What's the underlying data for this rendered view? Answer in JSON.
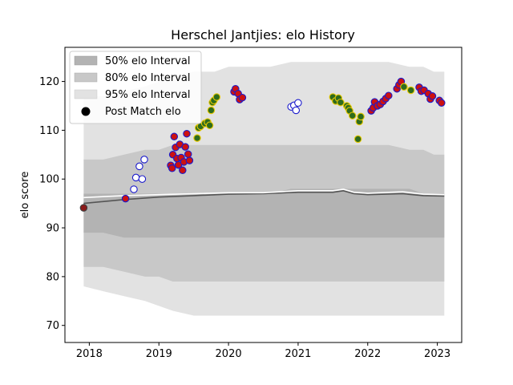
{
  "chart_data": {
    "type": "scatter",
    "title": "Herschel Jantjies: elo History",
    "xlabel": "",
    "ylabel": "elo score",
    "xlim": [
      2017.65,
      2023.35
    ],
    "ylim": [
      66.5,
      127
    ],
    "x_ticks": [
      2018,
      2019,
      2020,
      2021,
      2022,
      2023
    ],
    "x_tick_labels": [
      "2018",
      "2019",
      "2020",
      "2021",
      "2022",
      "2023"
    ],
    "y_ticks": [
      70,
      80,
      90,
      100,
      110,
      120
    ],
    "y_tick_labels": [
      "70",
      "80",
      "90",
      "100",
      "110",
      "120"
    ],
    "legend": {
      "position": "top-left",
      "entries": [
        {
          "label": "50% elo Interval",
          "color": "#b3b3b3"
        },
        {
          "label": "80% elo Interval",
          "color": "#c8c8c8"
        },
        {
          "label": "95% elo Interval",
          "color": "#e2e2e2"
        },
        {
          "label": "Post Match elo",
          "color": "#000000"
        }
      ]
    },
    "bands": {
      "x": [
        2017.92,
        2018.2,
        2018.5,
        2018.8,
        2019.0,
        2019.2,
        2019.5,
        2019.8,
        2020.0,
        2020.3,
        2020.6,
        2020.9,
        2021.2,
        2021.5,
        2021.8,
        2022.0,
        2022.3,
        2022.6,
        2022.8,
        2022.95,
        2023.1
      ],
      "p95_upper": [
        117,
        117,
        118,
        119,
        120,
        121,
        122,
        122,
        123,
        123,
        123,
        124,
        124,
        124,
        124,
        124,
        124,
        123,
        123,
        122,
        122
      ],
      "p80_upper": [
        104,
        104,
        105,
        106,
        106,
        107,
        107,
        107,
        107,
        107,
        107,
        107,
        107,
        107,
        107,
        107,
        107,
        106,
        106,
        105,
        105
      ],
      "p50_upper": [
        97,
        97,
        97,
        97,
        97,
        97,
        97,
        97,
        97,
        97,
        97,
        98,
        98,
        98,
        98,
        98,
        98,
        98,
        97,
        97,
        97
      ],
      "p50_lower": [
        89,
        89,
        88,
        88,
        88,
        88,
        88,
        88,
        88,
        88,
        88,
        88,
        88,
        88,
        88,
        88,
        88,
        88,
        88,
        88,
        88
      ],
      "p80_lower": [
        82,
        82,
        81,
        80,
        80,
        79,
        79,
        79,
        79,
        79,
        79,
        79,
        79,
        79,
        79,
        79,
        79,
        79,
        79,
        79,
        79
      ],
      "p95_lower": [
        78,
        77,
        76,
        75,
        74,
        73,
        72,
        72,
        72,
        72,
        72,
        72,
        72,
        72,
        72,
        72,
        72,
        72,
        72,
        72,
        72
      ]
    },
    "median_line": {
      "x": [
        2017.92,
        2018.5,
        2019.0,
        2019.5,
        2020.0,
        2020.5,
        2021.0,
        2021.5,
        2021.65,
        2021.8,
        2022.0,
        2022.5,
        2022.8,
        2023.1
      ],
      "y": [
        95.0,
        95.8,
        96.3,
        96.6,
        96.9,
        97.0,
        97.3,
        97.3,
        97.6,
        97.0,
        96.8,
        97.0,
        96.6,
        96.5
      ],
      "color": "#555555"
    },
    "mean_line": {
      "x": [
        2017.92,
        2018.5,
        2019.0,
        2019.5,
        2020.0,
        2020.5,
        2021.0,
        2021.5,
        2021.65,
        2021.8,
        2022.0,
        2022.5,
        2022.8,
        2023.1
      ],
      "y": [
        96.2,
        96.6,
        96.8,
        97.0,
        97.2,
        97.2,
        97.6,
        97.6,
        97.9,
        97.3,
        97.1,
        97.4,
        96.9,
        96.8
      ],
      "color": "#ffffff"
    },
    "series": [
      {
        "name": "start",
        "face": "#8b1a1a",
        "edge": "#404040",
        "points": [
          [
            2017.92,
            94.1
          ]
        ]
      },
      {
        "name": "red-face",
        "face": "#cc1111",
        "edge": "#1a1acc",
        "points": [
          [
            2018.52,
            96.0
          ],
          [
            2019.17,
            102.8
          ],
          [
            2019.19,
            102.2
          ],
          [
            2019.2,
            105.0
          ],
          [
            2019.22,
            108.7
          ],
          [
            2019.24,
            106.5
          ],
          [
            2019.26,
            104.2
          ],
          [
            2019.28,
            102.9
          ],
          [
            2019.3,
            107.1
          ],
          [
            2019.32,
            104.4
          ],
          [
            2019.34,
            101.8
          ],
          [
            2019.36,
            103.5
          ],
          [
            2019.38,
            106.6
          ],
          [
            2019.4,
            109.3
          ],
          [
            2019.42,
            105.1
          ],
          [
            2019.44,
            103.8
          ],
          [
            2020.08,
            117.9
          ],
          [
            2020.1,
            118.5
          ],
          [
            2020.14,
            117.5
          ],
          [
            2020.16,
            116.3
          ],
          [
            2020.2,
            116.7
          ],
          [
            2022.05,
            114.0
          ],
          [
            2022.08,
            114.6
          ],
          [
            2022.1,
            115.8
          ],
          [
            2022.14,
            115.0
          ],
          [
            2022.18,
            115.3
          ],
          [
            2022.22,
            115.9
          ],
          [
            2022.26,
            116.5
          ],
          [
            2022.3,
            117.1
          ],
          [
            2022.42,
            118.5
          ],
          [
            2022.45,
            119.3
          ],
          [
            2022.48,
            120.0
          ],
          [
            2022.74,
            118.8
          ],
          [
            2022.77,
            118.0
          ],
          [
            2022.81,
            118.2
          ],
          [
            2022.87,
            117.5
          ],
          [
            2022.9,
            116.4
          ],
          [
            2022.93,
            117.0
          ],
          [
            2023.03,
            116.1
          ],
          [
            2023.06,
            115.6
          ]
        ]
      },
      {
        "name": "white-face",
        "face": "#ffffff",
        "edge": "#1a1acc",
        "points": [
          [
            2018.64,
            97.9
          ],
          [
            2018.67,
            100.3
          ],
          [
            2018.72,
            102.6
          ],
          [
            2018.76,
            100.0
          ],
          [
            2018.79,
            104.0
          ],
          [
            2020.9,
            114.8
          ],
          [
            2020.94,
            115.1
          ],
          [
            2020.97,
            114.1
          ],
          [
            2021.0,
            115.6
          ]
        ]
      },
      {
        "name": "green-face",
        "face": "#2e6b1e",
        "edge": "#e6c800",
        "points": [
          [
            2019.55,
            108.4
          ],
          [
            2019.57,
            110.5
          ],
          [
            2019.6,
            110.8
          ],
          [
            2019.66,
            111.4
          ],
          [
            2019.7,
            111.7
          ],
          [
            2019.73,
            111.0
          ],
          [
            2019.75,
            114.1
          ],
          [
            2019.77,
            115.7
          ],
          [
            2019.79,
            116.1
          ],
          [
            2019.83,
            116.8
          ],
          [
            2021.5,
            116.8
          ],
          [
            2021.54,
            116.0
          ],
          [
            2021.58,
            116.6
          ],
          [
            2021.61,
            115.7
          ],
          [
            2021.7,
            115.0
          ],
          [
            2021.72,
            114.6
          ],
          [
            2021.74,
            114.0
          ],
          [
            2021.78,
            113.0
          ],
          [
            2021.86,
            108.2
          ],
          [
            2021.88,
            111.8
          ],
          [
            2021.9,
            112.8
          ],
          [
            2022.52,
            118.9
          ],
          [
            2022.62,
            118.2
          ]
        ]
      }
    ]
  }
}
